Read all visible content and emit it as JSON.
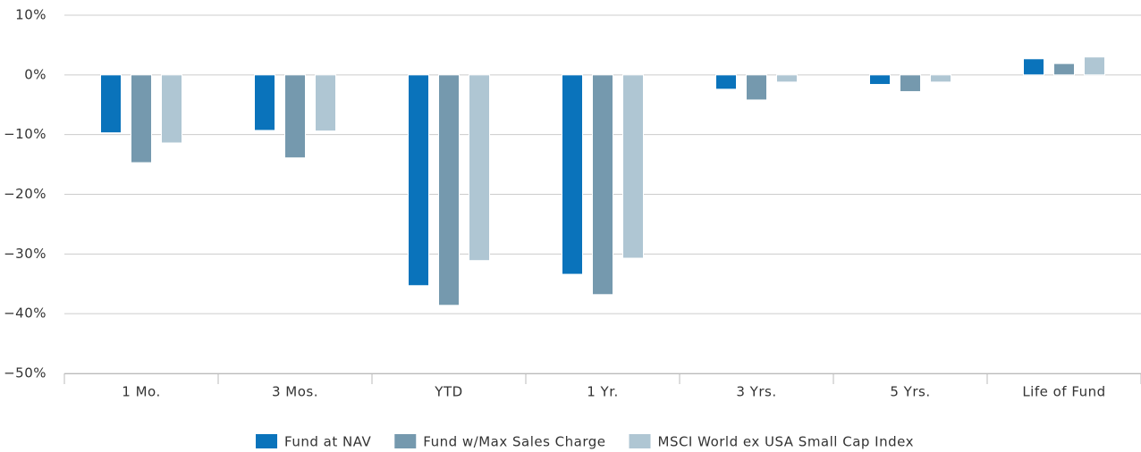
{
  "chart_data": {
    "type": "bar",
    "categories": [
      "1 Mo.",
      "3 Mos.",
      "YTD",
      "1 Yr.",
      "3 Yrs.",
      "5 Yrs.",
      "Life of Fund"
    ],
    "series": [
      {
        "name": "Fund at NAV",
        "color": "#0a73bb",
        "values": [
          -9.7,
          -9.3,
          -35.3,
          -33.4,
          -2.4,
          -1.6,
          2.7
        ]
      },
      {
        "name": "Fund w/Max Sales Charge",
        "color": "#7599ae",
        "values": [
          -14.7,
          -13.9,
          -38.6,
          -36.8,
          -4.2,
          -2.8,
          1.9
        ]
      },
      {
        "name": "MSCI World ex USA Small Cap Index",
        "color": "#afc6d3",
        "values": [
          -11.4,
          -9.4,
          -31.1,
          -30.7,
          -1.2,
          -1.2,
          3.0
        ]
      }
    ],
    "ylim": [
      -50,
      10
    ],
    "yticks": [
      {
        "value": 10,
        "label": "10%"
      },
      {
        "value": 0,
        "label": "0%"
      },
      {
        "value": -10,
        "label": "−10%"
      },
      {
        "value": -20,
        "label": "−20%"
      },
      {
        "value": -30,
        "label": "−30%"
      },
      {
        "value": -40,
        "label": "−40%"
      },
      {
        "value": -50,
        "label": "−50%"
      }
    ],
    "grid": true,
    "legend": "bottom"
  }
}
